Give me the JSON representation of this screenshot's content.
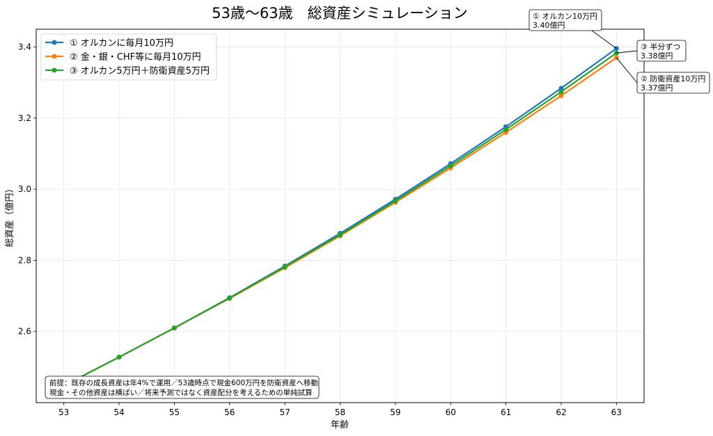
{
  "chart_data": {
    "type": "line",
    "title": "53歳〜63歳　総資産シミュレーション",
    "xlabel": "年齢",
    "ylabel": "総資産（億円）",
    "x": [
      53,
      54,
      55,
      56,
      57,
      58,
      59,
      60,
      61,
      62,
      63
    ],
    "xlim": [
      52.5,
      63.5
    ],
    "ylim": [
      2.4,
      3.45
    ],
    "yticks": [
      2.6,
      2.8,
      3.0,
      3.2,
      3.4
    ],
    "ytick_labels": [
      "2.6",
      "2.8",
      "3.0",
      "3.2",
      "3.4"
    ],
    "xtick_labels": [
      "53",
      "54",
      "55",
      "56",
      "57",
      "58",
      "59",
      "60",
      "61",
      "62",
      "63"
    ],
    "grid": true,
    "legend_position": "top-left",
    "series": [
      {
        "name": "① オルカンに毎月10万円",
        "color": "#1f77b4",
        "values": [
          2.448,
          2.528,
          2.61,
          2.695,
          2.784,
          2.876,
          2.972,
          3.072,
          3.176,
          3.284,
          3.396
        ]
      },
      {
        "name": "② 金・銀・CHF等に毎月10万円",
        "color": "#ff7f0e",
        "values": [
          2.448,
          2.528,
          2.61,
          2.693,
          2.779,
          2.869,
          2.963,
          3.06,
          3.16,
          3.263,
          3.37
        ]
      },
      {
        "name": "③ オルカン5万円＋防衛資産5万円",
        "color": "#2ca02c",
        "values": [
          2.448,
          2.528,
          2.61,
          2.694,
          2.782,
          2.872,
          2.967,
          3.066,
          3.168,
          3.274,
          3.383
        ]
      }
    ],
    "annotations": [
      {
        "series": 0,
        "line1": "① オルカン10万円",
        "line2": "3.40億円"
      },
      {
        "series": 2,
        "line1": "③ 半分ずつ",
        "line2": "3.38億円"
      },
      {
        "series": 1,
        "line1": "② 防衛資産10万円",
        "line2": "3.37億円"
      }
    ],
    "note": {
      "line1": "前提：既存の成長資産は年4%で運用／53歳時点で現金600万円を防衛資産へ移動",
      "line2": "現金・その他資産は横ばい／将来予測ではなく資産配分を考えるための単純試算"
    }
  }
}
